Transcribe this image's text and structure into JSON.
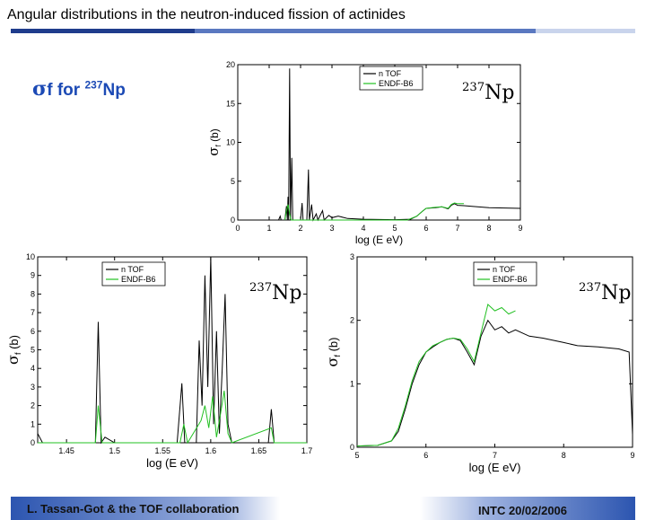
{
  "header": {
    "title": "Angular distributions in the neutron-induced fission of actinides"
  },
  "subtitle": {
    "sigma": "σ",
    "text": "f  for ",
    "sup": "237",
    "element": "Np"
  },
  "footer": {
    "left": "L. Tassan-Got & the TOF collaboration",
    "right": "INTC 20/02/2006"
  },
  "colors": {
    "ntof": "#000000",
    "endf": "#22c022",
    "accent": "#1c4ab5"
  },
  "chart_data": [
    {
      "id": "top",
      "type": "line",
      "xlabel": "log (E eV)",
      "ylabel": "σ_f (b)",
      "ylabel_main": "σ",
      "ylabel_sub": "f",
      "ylabel_tail": " (b)",
      "xlim": [
        0,
        9
      ],
      "ylim": [
        0,
        20
      ],
      "xticks": [
        0,
        1,
        2,
        3,
        4,
        5,
        6,
        7,
        8,
        9
      ],
      "yticks": [
        0,
        5,
        10,
        15,
        20
      ],
      "legend": [
        "n TOF",
        "ENDF-B6"
      ],
      "annotation_sup": "237",
      "annotation": "Np",
      "series": [
        {
          "name": "n TOF",
          "color": "#000000",
          "points": [
            [
              0,
              0
            ],
            [
              1.3,
              0
            ],
            [
              1.35,
              0.5
            ],
            [
              1.38,
              0
            ],
            [
              1.5,
              0
            ],
            [
              1.55,
              1.8
            ],
            [
              1.58,
              0
            ],
            [
              1.6,
              3
            ],
            [
              1.62,
              0
            ],
            [
              1.65,
              19.5
            ],
            [
              1.68,
              0
            ],
            [
              1.72,
              8
            ],
            [
              1.75,
              0
            ],
            [
              2.0,
              0
            ],
            [
              2.05,
              2.2
            ],
            [
              2.08,
              0
            ],
            [
              2.2,
              0
            ],
            [
              2.25,
              6.5
            ],
            [
              2.28,
              0
            ],
            [
              2.35,
              2.0
            ],
            [
              2.4,
              0
            ],
            [
              2.5,
              0.8
            ],
            [
              2.55,
              0
            ],
            [
              2.7,
              1.2
            ],
            [
              2.75,
              0
            ],
            [
              2.9,
              0.6
            ],
            [
              3.0,
              0.3
            ],
            [
              3.2,
              0.5
            ],
            [
              3.5,
              0.2
            ],
            [
              4.0,
              0.1
            ],
            [
              5.0,
              0.05
            ],
            [
              5.5,
              0.1
            ],
            [
              5.7,
              0.5
            ],
            [
              5.9,
              1.2
            ],
            [
              6.0,
              1.5
            ],
            [
              6.3,
              1.6
            ],
            [
              6.5,
              1.7
            ],
            [
              6.7,
              1.45
            ],
            [
              6.8,
              1.9
            ],
            [
              6.9,
              2.1
            ],
            [
              7.0,
              1.9
            ],
            [
              7.2,
              1.85
            ],
            [
              7.5,
              1.75
            ],
            [
              8.0,
              1.6
            ],
            [
              8.5,
              1.55
            ],
            [
              9.0,
              1.5
            ]
          ]
        },
        {
          "name": "ENDF-B6",
          "color": "#22c022",
          "points": [
            [
              1.5,
              0
            ],
            [
              1.55,
              1.2
            ],
            [
              1.6,
              2
            ],
            [
              1.65,
              0.8
            ],
            [
              1.7,
              0
            ],
            [
              5.4,
              0
            ],
            [
              5.7,
              0.5
            ],
            [
              5.9,
              1.2
            ],
            [
              6.0,
              1.5
            ],
            [
              6.3,
              1.65
            ],
            [
              6.5,
              1.7
            ],
            [
              6.7,
              1.5
            ],
            [
              6.8,
              2.0
            ],
            [
              6.9,
              2.2
            ],
            [
              7.0,
              2.1
            ],
            [
              7.2,
              2.1
            ]
          ]
        }
      ]
    },
    {
      "id": "bottom-left",
      "type": "line",
      "xlabel": "log (E eV)",
      "ylabel": "σ_f (b)",
      "ylabel_main": "σ",
      "ylabel_sub": "f",
      "ylabel_tail": " (b)",
      "xlim": [
        1.42,
        1.7
      ],
      "ylim": [
        0,
        10
      ],
      "xticks": [
        1.45,
        1.5,
        1.55,
        1.6,
        1.65,
        1.7
      ],
      "yticks": [
        0,
        1,
        2,
        3,
        4,
        5,
        6,
        7,
        8,
        9,
        10
      ],
      "legend": [
        "n TOF",
        "ENDF-B6"
      ],
      "annotation_sup": "237",
      "annotation": "Np",
      "series": [
        {
          "name": "n TOF",
          "color": "#000000",
          "points": [
            [
              1.42,
              0.5
            ],
            [
              1.425,
              0
            ],
            [
              1.48,
              0
            ],
            [
              1.483,
              6.5
            ],
            [
              1.486,
              0
            ],
            [
              1.49,
              0.3
            ],
            [
              1.5,
              0
            ],
            [
              1.565,
              0
            ],
            [
              1.57,
              3.2
            ],
            [
              1.573,
              0
            ],
            [
              1.585,
              0
            ],
            [
              1.588,
              5.5
            ],
            [
              1.591,
              2
            ],
            [
              1.594,
              9
            ],
            [
              1.597,
              3
            ],
            [
              1.6,
              10
            ],
            [
              1.603,
              1
            ],
            [
              1.606,
              6
            ],
            [
              1.609,
              0.5
            ],
            [
              1.612,
              4
            ],
            [
              1.615,
              8
            ],
            [
              1.618,
              1
            ],
            [
              1.622,
              0
            ],
            [
              1.66,
              0
            ],
            [
              1.663,
              1.8
            ],
            [
              1.666,
              0
            ],
            [
              1.7,
              0
            ]
          ]
        },
        {
          "name": "ENDF-B6",
          "color": "#22c022",
          "points": [
            [
              1.42,
              0
            ],
            [
              1.48,
              0
            ],
            [
              1.483,
              2
            ],
            [
              1.487,
              0
            ],
            [
              1.568,
              0
            ],
            [
              1.572,
              1
            ],
            [
              1.576,
              0
            ],
            [
              1.59,
              1.2
            ],
            [
              1.594,
              2
            ],
            [
              1.598,
              0.8
            ],
            [
              1.602,
              2.5
            ],
            [
              1.606,
              0.3
            ],
            [
              1.61,
              1.5
            ],
            [
              1.614,
              2.8
            ],
            [
              1.618,
              0.5
            ],
            [
              1.622,
              0
            ],
            [
              1.663,
              0.8
            ],
            [
              1.666,
              0
            ],
            [
              1.7,
              0
            ]
          ]
        }
      ]
    },
    {
      "id": "bottom-right",
      "type": "line",
      "xlabel": "log (E eV)",
      "ylabel": "σ_f (b)",
      "ylabel_main": "σ",
      "ylabel_sub": "f",
      "ylabel_tail": " (b)",
      "xlim": [
        5,
        9
      ],
      "ylim": [
        0,
        3
      ],
      "xticks": [
        5,
        6,
        7,
        8,
        9
      ],
      "yticks": [
        0,
        1,
        2,
        3
      ],
      "legend": [
        "n TOF",
        "ENDF-B6"
      ],
      "annotation_sup": "237",
      "annotation": "Np",
      "series": [
        {
          "name": "n TOF",
          "color": "#000000",
          "points": [
            [
              5,
              0.02
            ],
            [
              5.3,
              0.03
            ],
            [
              5.5,
              0.1
            ],
            [
              5.6,
              0.25
            ],
            [
              5.7,
              0.6
            ],
            [
              5.8,
              1.0
            ],
            [
              5.9,
              1.3
            ],
            [
              6.0,
              1.5
            ],
            [
              6.1,
              1.58
            ],
            [
              6.2,
              1.65
            ],
            [
              6.3,
              1.7
            ],
            [
              6.4,
              1.72
            ],
            [
              6.5,
              1.68
            ],
            [
              6.6,
              1.5
            ],
            [
              6.7,
              1.3
            ],
            [
              6.8,
              1.75
            ],
            [
              6.9,
              2.0
            ],
            [
              7.0,
              1.85
            ],
            [
              7.1,
              1.9
            ],
            [
              7.2,
              1.8
            ],
            [
              7.3,
              1.85
            ],
            [
              7.5,
              1.75
            ],
            [
              7.7,
              1.72
            ],
            [
              8.0,
              1.65
            ],
            [
              8.2,
              1.6
            ],
            [
              8.5,
              1.58
            ],
            [
              8.8,
              1.55
            ],
            [
              8.95,
              1.5
            ],
            [
              9.0,
              0.2
            ]
          ]
        },
        {
          "name": "ENDF-B6",
          "color": "#22c022",
          "points": [
            [
              5,
              0.02
            ],
            [
              5.3,
              0.03
            ],
            [
              5.5,
              0.1
            ],
            [
              5.6,
              0.3
            ],
            [
              5.7,
              0.65
            ],
            [
              5.8,
              1.05
            ],
            [
              5.9,
              1.35
            ],
            [
              6.0,
              1.5
            ],
            [
              6.1,
              1.6
            ],
            [
              6.2,
              1.65
            ],
            [
              6.3,
              1.7
            ],
            [
              6.4,
              1.72
            ],
            [
              6.5,
              1.7
            ],
            [
              6.6,
              1.55
            ],
            [
              6.7,
              1.35
            ],
            [
              6.8,
              1.8
            ],
            [
              6.9,
              2.25
            ],
            [
              7.0,
              2.15
            ],
            [
              7.1,
              2.2
            ],
            [
              7.2,
              2.1
            ],
            [
              7.3,
              2.15
            ]
          ]
        }
      ]
    }
  ]
}
